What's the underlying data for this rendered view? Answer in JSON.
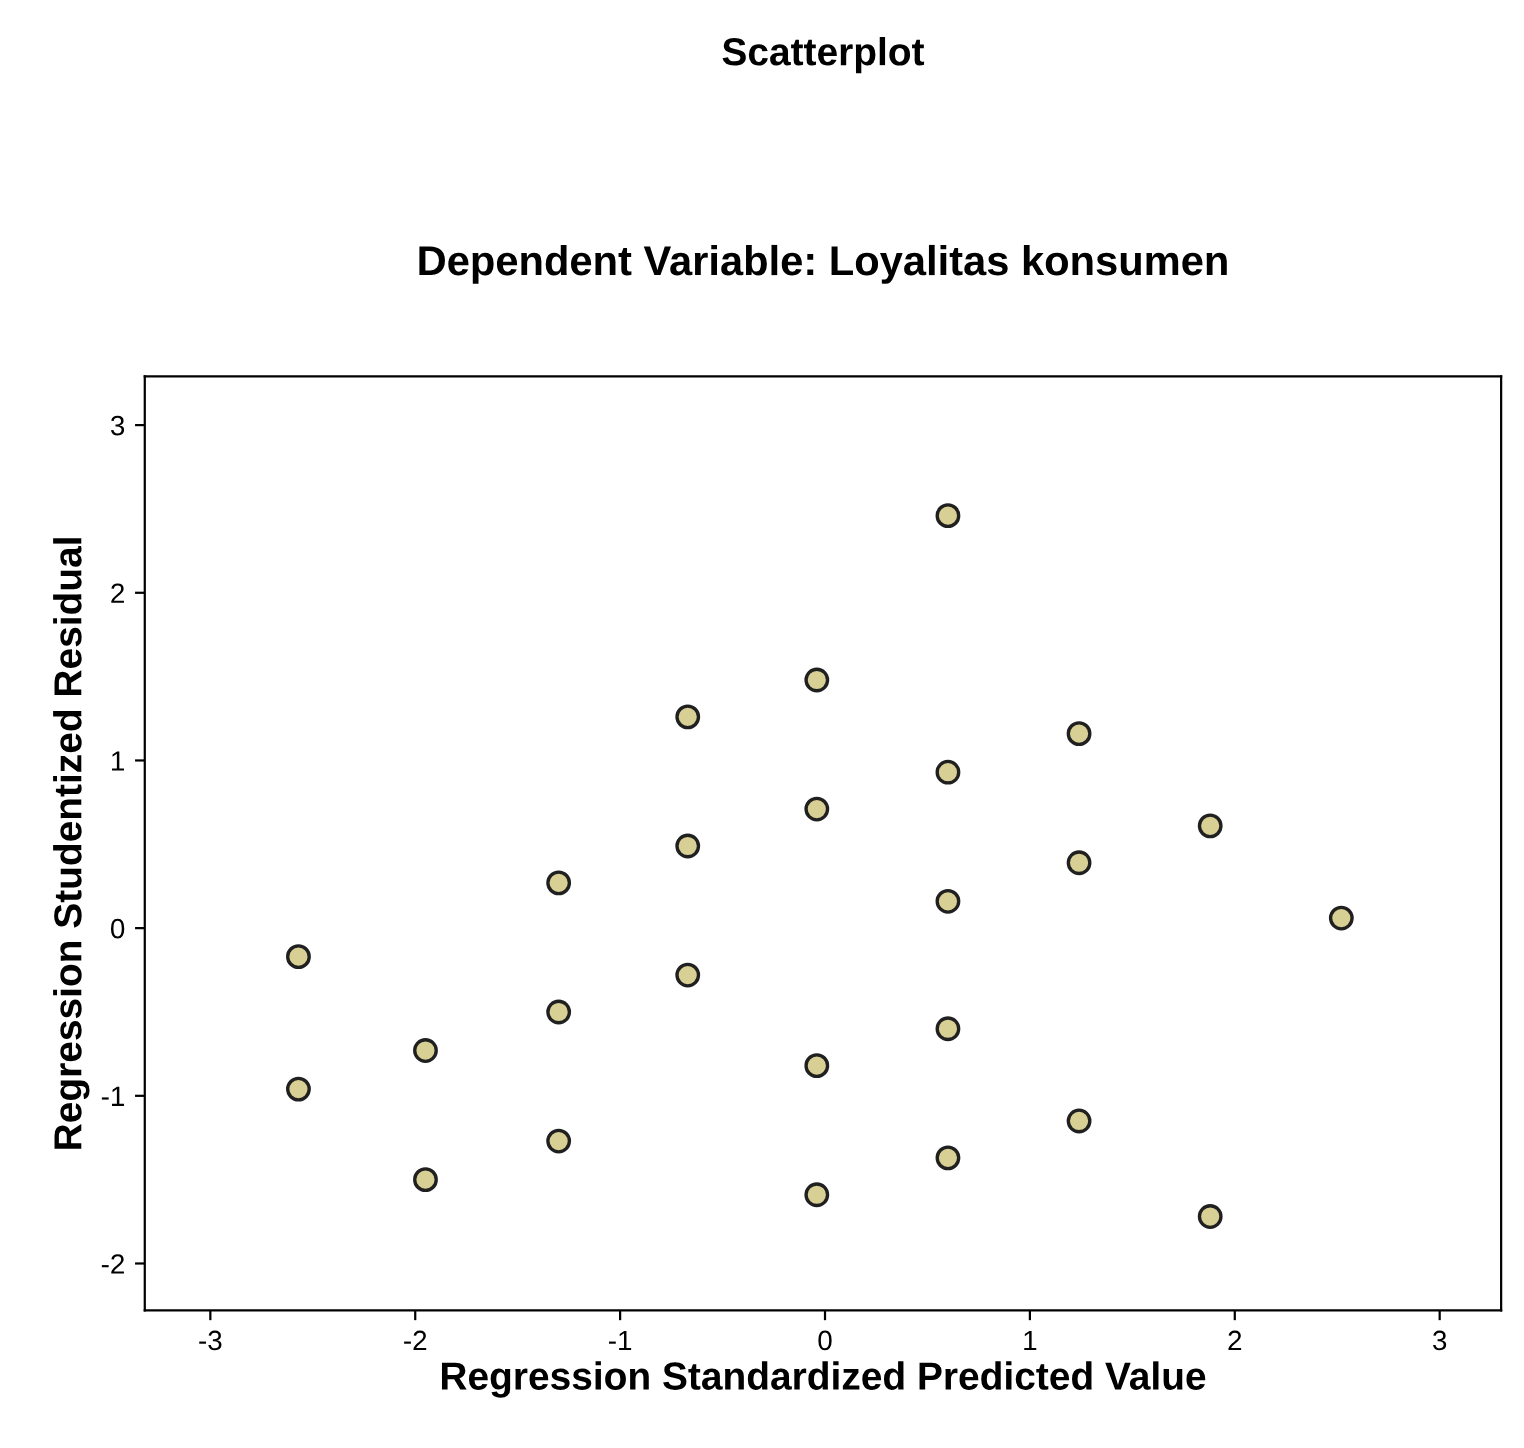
{
  "chart_data": {
    "type": "scatter",
    "title": "Scatterplot",
    "subtitle": "Dependent Variable: Loyalitas konsumen",
    "xlabel": "Regression Standardized Predicted Value",
    "ylabel": "Regression Studentized Residual",
    "xlim": [
      -3.32,
      3.3
    ],
    "ylim": [
      -2.28,
      3.29
    ],
    "xticks": [
      -3,
      -2,
      -1,
      0,
      1,
      2,
      3
    ],
    "yticks": [
      -2,
      -1,
      0,
      1,
      2,
      3
    ],
    "grid": false,
    "marker": "circle",
    "series": [
      {
        "color": "#d8cf94",
        "x": [
          -2.57,
          -2.57,
          -1.95,
          -1.95,
          -1.3,
          -1.3,
          -1.3,
          -0.67,
          -0.67,
          -0.67,
          -0.04,
          -0.04,
          -0.04,
          -0.04,
          0.6,
          0.6,
          0.6,
          0.6,
          0.6,
          1.24,
          1.24,
          1.24,
          1.88,
          1.88,
          2.52
        ],
        "values": [
          -0.17,
          -0.96,
          -0.73,
          -1.5,
          0.27,
          -0.5,
          -1.27,
          1.26,
          0.49,
          -0.28,
          1.48,
          0.71,
          -0.82,
          -1.59,
          2.46,
          0.93,
          0.16,
          -0.6,
          -1.37,
          1.16,
          0.39,
          -1.15,
          0.61,
          -1.72,
          0.06
        ]
      }
    ]
  }
}
